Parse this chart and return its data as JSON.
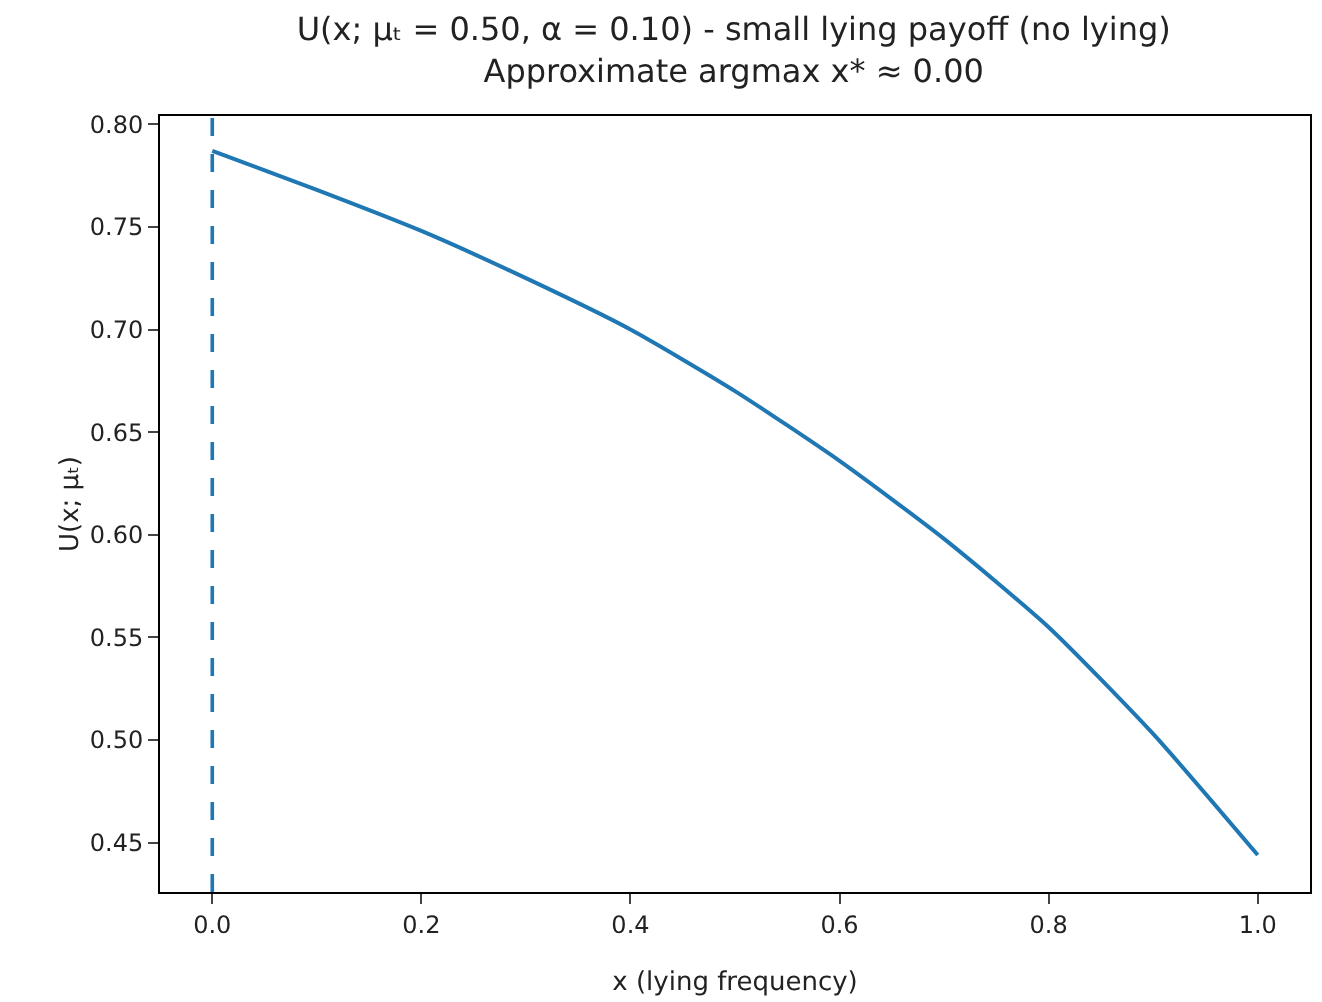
{
  "chart_data": {
    "type": "line",
    "title": "U(x; μₜ = 0.50, α = 0.10) - small lying payoff (no lying)",
    "subtitle": "Approximate argmax x* ≈ 0.00",
    "xlabel": "x (lying frequency)",
    "ylabel": "U(x; μₜ)",
    "x": [
      0,
      0.1,
      0.2,
      0.3,
      0.4,
      0.5,
      0.6,
      0.7,
      0.8,
      0.9,
      1.0
    ],
    "series": [
      {
        "color": "#1f77b4",
        "values": [
          0.787,
          0.768,
          0.748,
          0.725,
          0.7,
          0.67,
          0.636,
          0.598,
          0.555,
          0.503,
          0.444
        ]
      }
    ],
    "xlim": [
      -0.05,
      1.05
    ],
    "xticks": [
      {
        "value": 0,
        "label": "0.0"
      },
      0.2,
      0.4,
      0.6,
      0.8,
      {
        "value": 1,
        "label": "1.0"
      }
    ],
    "ylim": [
      0.426,
      0.804
    ],
    "yticks": [
      {
        "value": 0.45,
        "label": "0.45"
      },
      {
        "value": 0.5,
        "label": "0.50"
      },
      0.55,
      {
        "value": 0.6,
        "label": "0.60"
      },
      0.65,
      {
        "value": 0.7,
        "label": "0.70"
      },
      0.75,
      {
        "value": 0.8,
        "label": "0.80"
      }
    ],
    "ref_lines": [
      {
        "axis": "x",
        "value": 0,
        "color": "#1f77b4",
        "line_style": "dashed"
      }
    ]
  }
}
